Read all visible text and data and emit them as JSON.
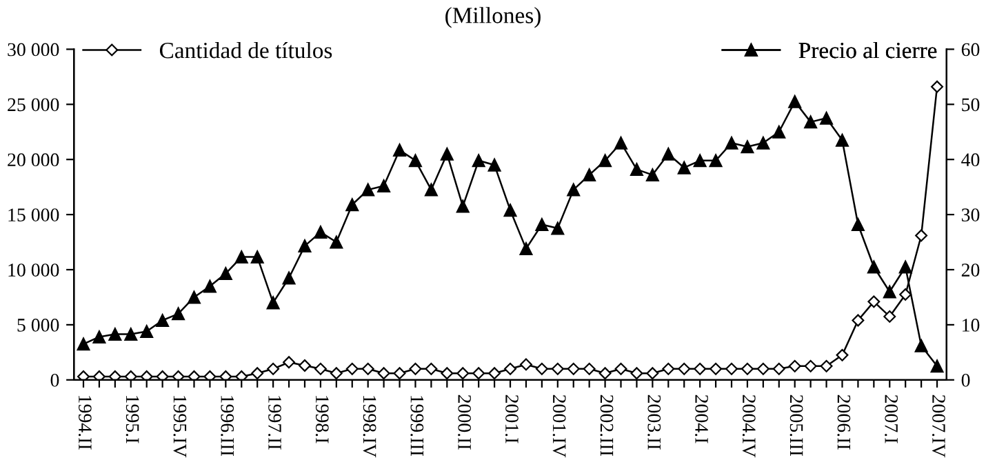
{
  "chart_data": {
    "type": "line",
    "title": "(Millones)",
    "categories": [
      "1994.II",
      null,
      null,
      "1995.I",
      null,
      null,
      "1995.IV",
      null,
      null,
      "1996.III",
      null,
      null,
      "1997.II",
      null,
      null,
      "1998.I",
      null,
      null,
      "1998.IV",
      null,
      null,
      "1999.III",
      null,
      null,
      "2000.II",
      null,
      null,
      "2001.I",
      null,
      null,
      "2001.IV",
      null,
      null,
      "2002.III",
      null,
      null,
      "2003.II",
      null,
      null,
      "2004.I",
      null,
      null,
      "2004.IV",
      null,
      null,
      "2005.III",
      null,
      null,
      "2006.II",
      null,
      null,
      "2007.I",
      null,
      null,
      "2007.IV"
    ],
    "series": [
      {
        "name": "Cantidad de títulos",
        "color": "#000000",
        "marker": "diamond",
        "values": [
          300,
          300,
          300,
          300,
          300,
          300,
          300,
          300,
          300,
          300,
          300,
          600,
          1000,
          1600,
          1300,
          1000,
          600,
          1000,
          1000,
          600,
          600,
          1000,
          1000,
          600,
          600,
          600,
          600,
          1000,
          1400,
          1000,
          1000,
          1000,
          1000,
          600,
          1000,
          600,
          600,
          1000,
          1000,
          1000,
          1000,
          1000,
          1000,
          1000,
          1000,
          1250,
          1250,
          1250,
          2250,
          5400,
          7100,
          5750,
          7750,
          13100,
          26600
        ]
      },
      {
        "name": "Precio al cierre",
        "color": "#000000",
        "marker": "triangle",
        "axis": "y2",
        "values": [
          6.5,
          7.8,
          8.3,
          8.3,
          8.8,
          10.8,
          12,
          15,
          17,
          19.3,
          22.3,
          22.3,
          14,
          18.5,
          24.3,
          26.8,
          25,
          31.8,
          34.5,
          35.2,
          41.7,
          39.8,
          34.5,
          41,
          31.5,
          39.8,
          39,
          30.8,
          23.8,
          28.2,
          27.5,
          34.5,
          37.2,
          39.8,
          43,
          38.2,
          37.2,
          41,
          38.5,
          39.8,
          39.8,
          43,
          42.3,
          43,
          45,
          50.5,
          46.8,
          47.5,
          43.5,
          28.2,
          20.5,
          16,
          20.5,
          6.2,
          2.5
        ]
      }
    ],
    "ylim": [
      0,
      30000
    ],
    "yticks": [
      0,
      {
        "value": 5000,
        "label": "5 000"
      },
      {
        "value": 10000,
        "label": "10 000"
      },
      {
        "value": 15000,
        "label": "15 000"
      },
      {
        "value": 20000,
        "label": "20 000"
      },
      {
        "value": 25000,
        "label": "25 000"
      },
      {
        "value": 30000,
        "label": "30 000"
      }
    ],
    "y2lim": [
      0,
      60
    ],
    "y2ticks": [
      0,
      10,
      20,
      30,
      40,
      50,
      60
    ],
    "grid": false,
    "legend": "top",
    "line_style": "solid"
  }
}
